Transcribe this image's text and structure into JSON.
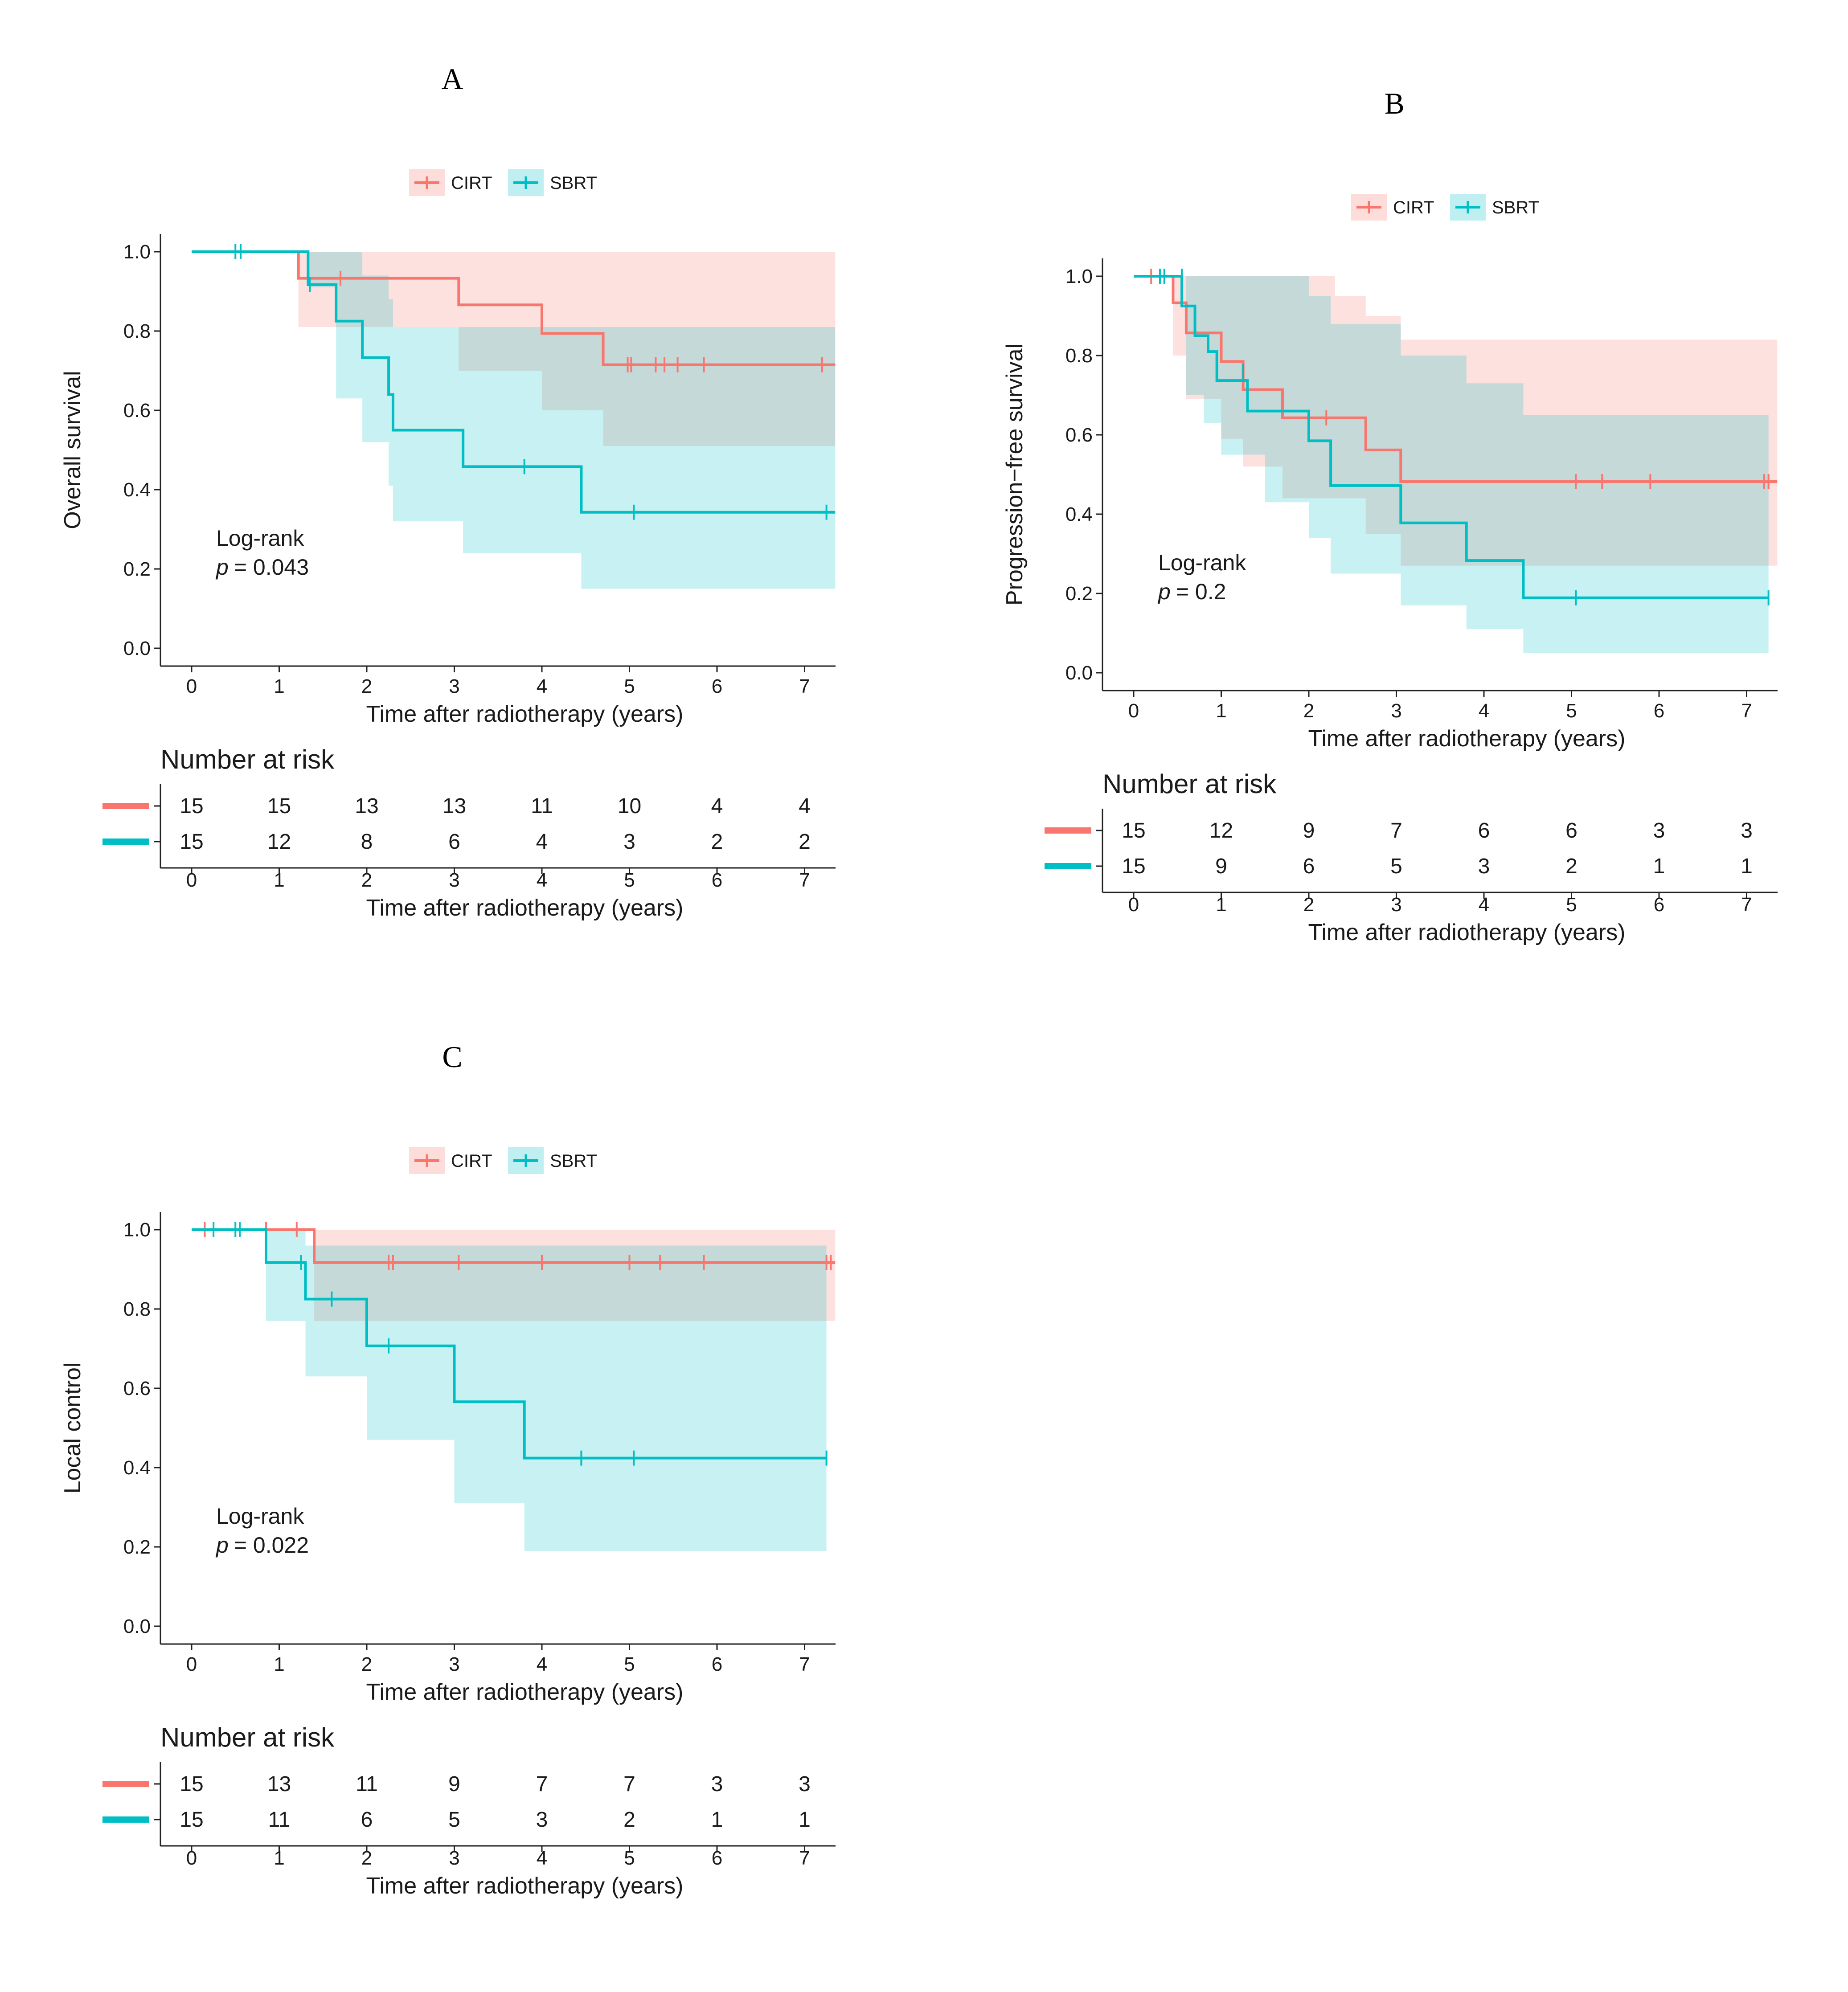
{
  "figure": {
    "colors": {
      "CIRT": "#F8766D",
      "SBRT": "#00BFC4",
      "ci_CIRT": "#F8766D",
      "ci_SBRT": "#00BFC4",
      "overlap": "#B8B8B8"
    },
    "risk_table_title": "Number at risk"
  },
  "chart_data": [
    {
      "panel": "A",
      "type": "line",
      "subtype": "kaplan-meier",
      "title": "A",
      "xlabel": "Time after radiotherapy (years)",
      "ylabel": "Overall survival",
      "xlim": [
        -0.35,
        7.35
      ],
      "ylim": [
        0,
        1
      ],
      "xticks": [
        0,
        1,
        2,
        3,
        4,
        5,
        6,
        7
      ],
      "yticks": [
        "0.0",
        "0.2",
        "0.4",
        "0.6",
        "0.8",
        "1.0"
      ],
      "legend": [
        "CIRT",
        "SBRT"
      ],
      "annotation": {
        "line1": "Log-rank",
        "p_label": "p",
        "p_value": "= 0.043"
      },
      "series": [
        {
          "name": "CIRT",
          "steps": [
            [
              0,
              1.0
            ],
            [
              1.22,
              0.933
            ],
            [
              3.05,
              0.866
            ],
            [
              4.0,
              0.794
            ],
            [
              4.7,
              0.715
            ]
          ],
          "end": 7.35,
          "censor": [
            [
              1.7,
              0.933
            ],
            [
              4.98,
              0.715
            ],
            [
              5.02,
              0.715
            ],
            [
              5.3,
              0.715
            ],
            [
              5.4,
              0.715
            ],
            [
              5.55,
              0.715
            ],
            [
              5.85,
              0.715
            ],
            [
              7.2,
              0.715
            ]
          ],
          "ci": [
            [
              0,
              1.0,
              1.0
            ],
            [
              1.22,
              0.81,
              1.0
            ],
            [
              1.35,
              0.81,
              1.0
            ],
            [
              2.28,
              0.81,
              1.0
            ],
            [
              3.05,
              0.7,
              1.0
            ],
            [
              4.0,
              0.6,
              1.0
            ],
            [
              4.7,
              0.51,
              1.0
            ]
          ]
        },
        {
          "name": "SBRT",
          "steps": [
            [
              0,
              1.0
            ],
            [
              1.33,
              0.917
            ],
            [
              1.65,
              0.825
            ],
            [
              1.95,
              0.733
            ],
            [
              2.25,
              0.64
            ],
            [
              2.3,
              0.55
            ],
            [
              3.1,
              0.458
            ],
            [
              4.45,
              0.343
            ]
          ],
          "end": 7.35,
          "censor": [
            [
              0.5,
              1.0
            ],
            [
              0.56,
              1.0
            ],
            [
              1.35,
              0.917
            ],
            [
              3.8,
              0.458
            ],
            [
              5.05,
              0.343
            ],
            [
              7.25,
              0.343
            ]
          ],
          "ci": [
            [
              0,
              1.0,
              1.0
            ],
            [
              1.33,
              0.91,
              1.0
            ],
            [
              1.65,
              0.63,
              1.0
            ],
            [
              1.95,
              0.52,
              0.94
            ],
            [
              2.25,
              0.41,
              0.88
            ],
            [
              2.3,
              0.32,
              0.81
            ],
            [
              3.1,
              0.24,
              0.81
            ],
            [
              4.45,
              0.15,
              0.81
            ]
          ]
        }
      ],
      "risk_table": {
        "CIRT": [
          15,
          15,
          13,
          13,
          11,
          10,
          4,
          4
        ],
        "SBRT": [
          15,
          12,
          8,
          6,
          4,
          3,
          2,
          2
        ]
      }
    },
    {
      "panel": "B",
      "type": "line",
      "subtype": "kaplan-meier",
      "title": "B",
      "xlabel": "Time after radiotherapy (years)",
      "ylabel": "Progression−free survival",
      "xlim": [
        -0.35,
        7.35
      ],
      "ylim": [
        0,
        1
      ],
      "xticks": [
        0,
        1,
        2,
        3,
        4,
        5,
        6,
        7
      ],
      "yticks": [
        "0.0",
        "0.2",
        "0.4",
        "0.6",
        "0.8",
        "1.0"
      ],
      "legend": [
        "CIRT",
        "SBRT"
      ],
      "annotation": {
        "line1": "Log-rank",
        "p_label": "p",
        "p_value": "= 0.2"
      },
      "series": [
        {
          "name": "CIRT",
          "steps": [
            [
              0,
              1.0
            ],
            [
              0.45,
              0.933
            ],
            [
              0.6,
              0.857
            ],
            [
              1.0,
              0.785
            ],
            [
              1.25,
              0.714
            ],
            [
              1.7,
              0.643
            ],
            [
              2.65,
              0.562
            ],
            [
              3.05,
              0.482
            ]
          ],
          "end": 7.35,
          "censor": [
            [
              0.2,
              1.0
            ],
            [
              2.2,
              0.643
            ],
            [
              5.05,
              0.482
            ],
            [
              5.35,
              0.482
            ],
            [
              5.9,
              0.482
            ],
            [
              7.2,
              0.482
            ],
            [
              7.25,
              0.482
            ]
          ],
          "ci": [
            [
              0,
              1.0,
              1.0
            ],
            [
              0.45,
              0.8,
              1.0
            ],
            [
              0.6,
              0.69,
              1.0
            ],
            [
              1.0,
              0.59,
              1.0
            ],
            [
              1.25,
              0.52,
              1.0
            ],
            [
              1.7,
              0.44,
              1.0
            ],
            [
              2.3,
              0.44,
              0.95
            ],
            [
              2.65,
              0.35,
              0.9
            ],
            [
              3.05,
              0.27,
              0.84
            ]
          ]
        },
        {
          "name": "SBRT",
          "steps": [
            [
              0,
              1.0
            ],
            [
              0.55,
              0.925
            ],
            [
              0.7,
              0.85
            ],
            [
              0.85,
              0.81
            ],
            [
              0.95,
              0.737
            ],
            [
              1.3,
              0.66
            ],
            [
              2.0,
              0.585
            ],
            [
              2.25,
              0.472
            ],
            [
              3.05,
              0.378
            ],
            [
              3.8,
              0.283
            ],
            [
              4.45,
              0.189
            ]
          ],
          "end": 7.25,
          "censor": [
            [
              0.3,
              1.0
            ],
            [
              0.35,
              1.0
            ],
            [
              0.55,
              1.0
            ],
            [
              1.25,
              0.76
            ],
            [
              5.05,
              0.189
            ],
            [
              7.25,
              0.189
            ]
          ],
          "ci": [
            [
              0,
              1.0,
              1.0
            ],
            [
              0.6,
              0.7,
              1.0
            ],
            [
              0.8,
              0.63,
              1.0
            ],
            [
              1.0,
              0.55,
              1.0
            ],
            [
              1.5,
              0.43,
              1.0
            ],
            [
              2.0,
              0.34,
              0.95
            ],
            [
              2.25,
              0.25,
              0.88
            ],
            [
              3.05,
              0.17,
              0.8
            ],
            [
              3.8,
              0.11,
              0.73
            ],
            [
              4.45,
              0.05,
              0.65
            ]
          ]
        }
      ],
      "risk_table": {
        "CIRT": [
          15,
          12,
          9,
          7,
          6,
          6,
          3,
          3
        ],
        "SBRT": [
          15,
          9,
          6,
          5,
          3,
          2,
          1,
          1
        ]
      }
    },
    {
      "panel": "C",
      "type": "line",
      "subtype": "kaplan-meier",
      "title": "C",
      "xlabel": "Time after radiotherapy (years)",
      "ylabel": "Local control",
      "xlim": [
        -0.35,
        7.35
      ],
      "ylim": [
        0,
        1
      ],
      "xticks": [
        0,
        1,
        2,
        3,
        4,
        5,
        6,
        7
      ],
      "yticks": [
        "0.0",
        "0.2",
        "0.4",
        "0.6",
        "0.8",
        "1.0"
      ],
      "legend": [
        "CIRT",
        "SBRT"
      ],
      "annotation": {
        "line1": "Log-rank",
        "p_label": "p",
        "p_value": "= 0.022"
      },
      "series": [
        {
          "name": "CIRT",
          "steps": [
            [
              0,
              1.0
            ],
            [
              1.4,
              0.917
            ]
          ],
          "end": 7.35,
          "censor": [
            [
              0.15,
              1.0
            ],
            [
              0.85,
              1.0
            ],
            [
              1.2,
              1.0
            ],
            [
              2.25,
              0.917
            ],
            [
              2.3,
              0.917
            ],
            [
              3.05,
              0.917
            ],
            [
              4.0,
              0.917
            ],
            [
              5.0,
              0.917
            ],
            [
              5.35,
              0.917
            ],
            [
              5.85,
              0.917
            ],
            [
              7.25,
              0.917
            ],
            [
              7.3,
              0.917
            ]
          ],
          "ci": [
            [
              0,
              1.0,
              1.0
            ],
            [
              1.4,
              0.77,
              1.0
            ]
          ]
        },
        {
          "name": "SBRT",
          "steps": [
            [
              0,
              1.0
            ],
            [
              0.85,
              0.917
            ],
            [
              1.3,
              0.825
            ],
            [
              2.0,
              0.707
            ],
            [
              3.0,
              0.566
            ],
            [
              3.8,
              0.424
            ]
          ],
          "end": 7.25,
          "censor": [
            [
              0.25,
              1.0
            ],
            [
              0.5,
              1.0
            ],
            [
              0.55,
              1.0
            ],
            [
              1.25,
              0.917
            ],
            [
              1.6,
              0.825
            ],
            [
              2.25,
              0.707
            ],
            [
              4.45,
              0.424
            ],
            [
              5.05,
              0.424
            ],
            [
              7.25,
              0.424
            ]
          ],
          "ci": [
            [
              0,
              1.0,
              1.0
            ],
            [
              0.85,
              0.77,
              1.0
            ],
            [
              1.3,
              0.63,
              0.96
            ],
            [
              2.0,
              0.47,
              0.96
            ],
            [
              3.0,
              0.31,
              0.96
            ],
            [
              3.8,
              0.19,
              0.96
            ]
          ]
        }
      ],
      "risk_table": {
        "CIRT": [
          15,
          13,
          11,
          9,
          7,
          7,
          3,
          3
        ],
        "SBRT": [
          15,
          11,
          6,
          5,
          3,
          2,
          1,
          1
        ]
      }
    }
  ]
}
